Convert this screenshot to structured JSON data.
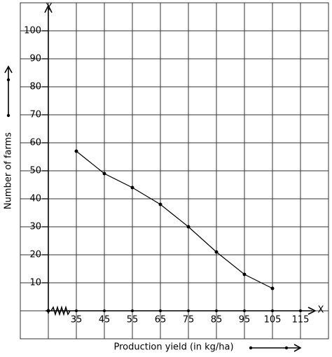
{
  "chart_data": {
    "type": "line",
    "x_label": "Production yield (in kg/ha)",
    "y_label": "Number of farms",
    "x_axis_name": "X",
    "y_axis_name": "Y",
    "x": [
      35,
      45,
      55,
      65,
      75,
      85,
      95,
      105
    ],
    "series": [
      {
        "name": "Number of farms",
        "color": "#000000",
        "values": [
          57,
          49,
          44,
          38,
          30,
          21,
          13,
          8
        ]
      }
    ],
    "xlim": [
      15,
      125
    ],
    "ylim": [
      -10,
      110
    ],
    "xticks": [
      35,
      45,
      55,
      65,
      75,
      85,
      95,
      105,
      115
    ],
    "yticks": [
      10,
      20,
      30,
      40,
      50,
      60,
      70,
      80,
      90,
      100
    ],
    "grid": true
  }
}
